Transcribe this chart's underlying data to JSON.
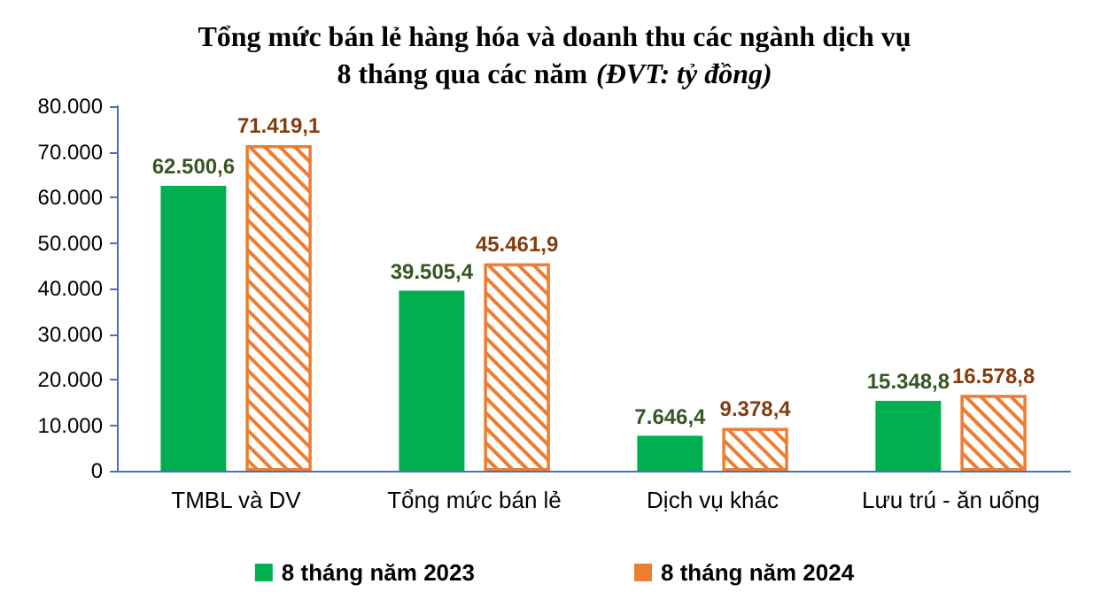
{
  "chart_data": {
    "type": "bar",
    "title": "Tổng mức bán lẻ hàng hóa và doanh thu các ngành dịch vụ\n8 tháng qua các năm",
    "subtitle": "(ĐVT: tỷ đồng)",
    "categories": [
      "TMBL và DV",
      "Tổng mức bán lẻ",
      "Dịch vụ khác",
      "Lưu trú - ăn uống"
    ],
    "series": [
      {
        "name": "8 tháng năm 2023",
        "color": "#00b050",
        "values": [
          62500.6,
          39505.4,
          7646.4,
          15348.8
        ],
        "value_labels": [
          "62.500,6",
          "39.505,4",
          "7.646,4",
          "15.348,8"
        ]
      },
      {
        "name": "8 tháng năm 2024",
        "color": "#ed7d31",
        "values": [
          71419.1,
          45461.9,
          9378.4,
          16578.8
        ],
        "value_labels": [
          "71.419,1",
          "45.461,9",
          "9.378,4",
          "16.578,8"
        ]
      }
    ],
    "ylim": [
      0,
      80000
    ],
    "yticks": [
      {
        "value": 0,
        "label": "0"
      },
      {
        "value": 10000,
        "label": "10.000"
      },
      {
        "value": 20000,
        "label": "20.000"
      },
      {
        "value": 30000,
        "label": "30.000"
      },
      {
        "value": 40000,
        "label": "40.000"
      },
      {
        "value": 50000,
        "label": "50.000"
      },
      {
        "value": 60000,
        "label": "60.000"
      },
      {
        "value": 70000,
        "label": "70.000"
      },
      {
        "value": 80000,
        "label": "80.000"
      }
    ],
    "grid": false,
    "legend": "bottom"
  }
}
